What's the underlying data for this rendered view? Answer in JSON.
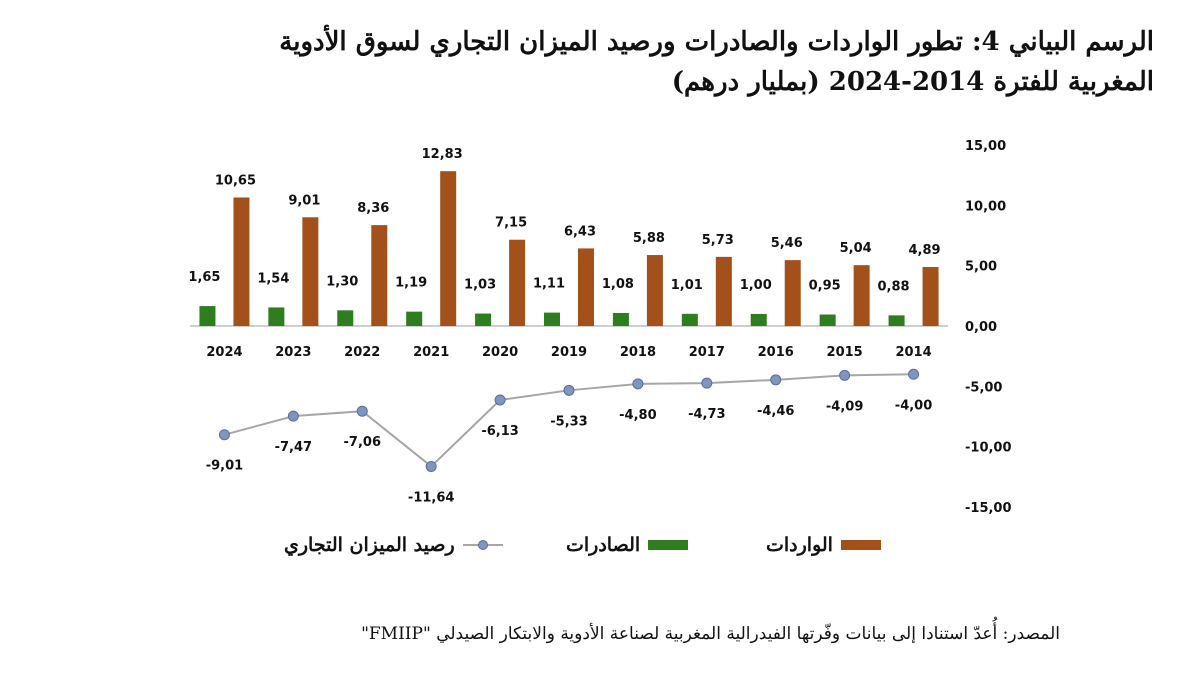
{
  "title_line1": "الرسم البياني 4: تطور الواردات والصادرات ورصيد الميزان التجاري لسوق الأدوية",
  "title_line2": "المغربية للفترة 2014-2024 (بمليار درهم)",
  "source": "المصدر: أُعدّ استنادا إلى بيانات وفّرتها الفيدرالية المغربية لصناعة الأدوية والابتكار الصيدلي \"FMIIP\"",
  "colors": {
    "imports": "#A4501A",
    "exports": "#2E7D1E",
    "balance_line": "#A6A6A6",
    "balance_marker": "#7F95C0",
    "axis": "#BFBFBF"
  },
  "chart_data": {
    "type": "bar+line",
    "categories": [
      "2024",
      "2023",
      "2022",
      "2021",
      "2020",
      "2019",
      "2018",
      "2017",
      "2016",
      "2015",
      "2014"
    ],
    "series": [
      {
        "name": "الواردات",
        "type": "bar",
        "values": [
          10.65,
          9.01,
          8.36,
          12.83,
          7.15,
          6.43,
          5.88,
          5.73,
          5.46,
          5.04,
          4.89
        ],
        "labels": [
          "10,65",
          "9,01",
          "8,36",
          "12,83",
          "7,15",
          "6,43",
          "5,88",
          "5,73",
          "5,46",
          "5,04",
          "4,89"
        ]
      },
      {
        "name": "الصادرات",
        "type": "bar",
        "values": [
          1.65,
          1.54,
          1.3,
          1.19,
          1.03,
          1.11,
          1.08,
          1.01,
          1.0,
          0.95,
          0.88
        ],
        "labels": [
          "1,65",
          "1,54",
          "1,30",
          "1,19",
          "1,03",
          "1,11",
          "1,08",
          "1,01",
          "1,00",
          "0,95",
          "0,88"
        ]
      },
      {
        "name": "رصيد الميزان التجاري",
        "type": "line",
        "values": [
          -9.01,
          -7.47,
          -7.06,
          -11.64,
          -6.13,
          -5.33,
          -4.8,
          -4.73,
          -4.46,
          -4.09,
          -4.0
        ],
        "labels": [
          "-9,01",
          "-7,47",
          "-7,06",
          "-11,64",
          "-6,13",
          "-5,33",
          "-4,80",
          "-4,73",
          "-4,46",
          "-4,09",
          "-4,00"
        ]
      }
    ],
    "ylim": [
      -15,
      15
    ],
    "yticks": [
      15,
      10,
      5,
      0,
      -5,
      -10,
      -15
    ],
    "ytick_labels": [
      "15,00",
      "10,00",
      "5,00",
      "0,00",
      "-5,00",
      "-10,00",
      "-15,00"
    ],
    "y_axis_side": "right",
    "grid": false,
    "legend_position": "bottom"
  }
}
